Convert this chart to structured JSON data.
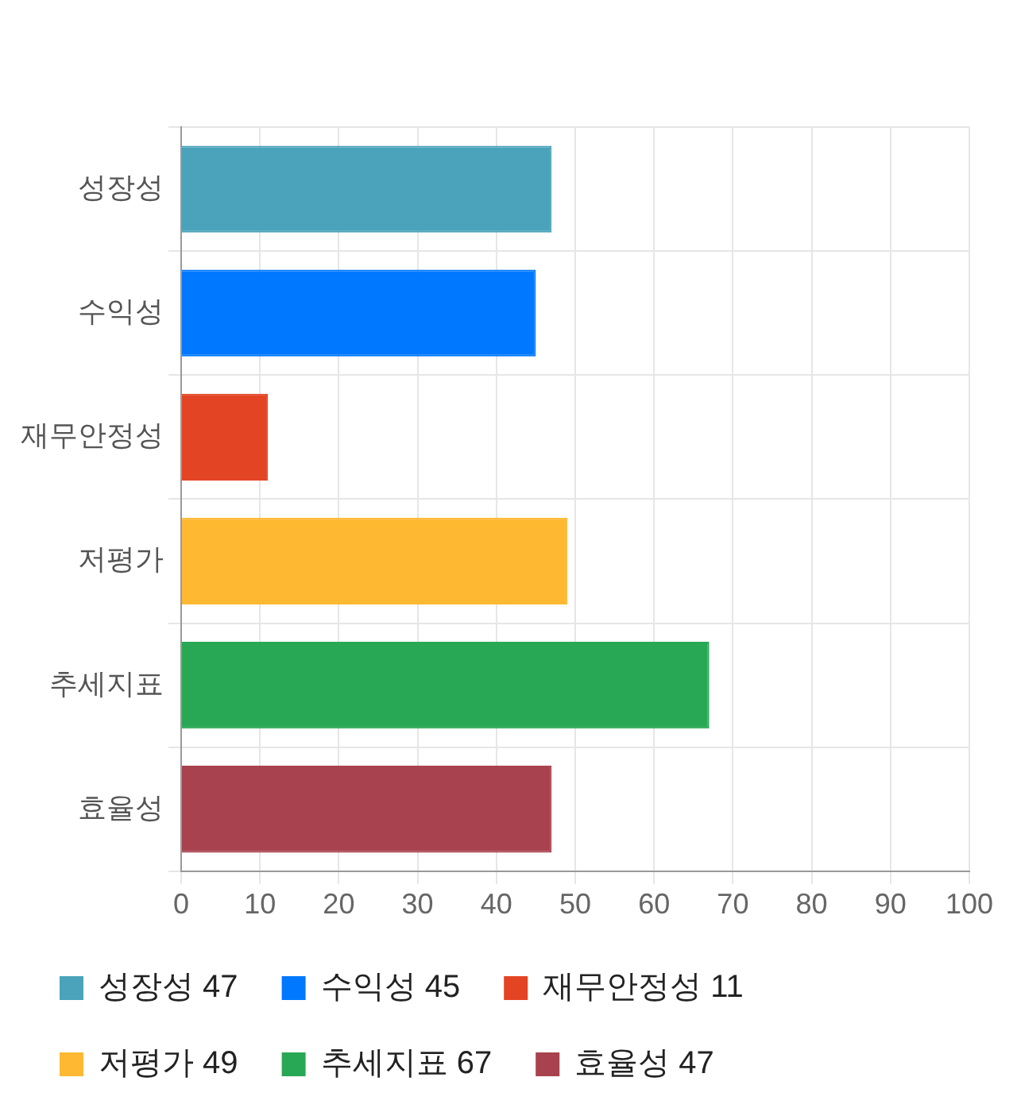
{
  "chart_data": {
    "type": "bar",
    "orientation": "horizontal",
    "stacked": true,
    "categories": [
      "성장성",
      "수익성",
      "재무안정성",
      "저평가",
      "추세지표",
      "효율성"
    ],
    "series": [
      {
        "name": "성장성 47",
        "color": "#4aa3ba",
        "values": [
          47,
          null,
          null,
          null,
          null,
          null
        ]
      },
      {
        "name": "수익성 45",
        "color": "#0078ff",
        "values": [
          null,
          45,
          null,
          null,
          null,
          null
        ]
      },
      {
        "name": "재무안정성 11",
        "color": "#e34424",
        "values": [
          null,
          null,
          11,
          null,
          null,
          null
        ]
      },
      {
        "name": "저평가 49",
        "color": "#ffb832",
        "values": [
          null,
          null,
          null,
          49,
          null,
          null
        ]
      },
      {
        "name": "추세지표 67",
        "color": "#28a854",
        "values": [
          null,
          null,
          null,
          null,
          67,
          null
        ]
      },
      {
        "name": "효율성 47",
        "color": "#a8424e",
        "values": [
          null,
          null,
          null,
          null,
          null,
          47
        ]
      }
    ],
    "xlim": [
      0,
      100
    ],
    "xticks": [
      0,
      10,
      20,
      30,
      40,
      50,
      60,
      70,
      80,
      90,
      100
    ],
    "grid": true,
    "legend": "bottom"
  }
}
